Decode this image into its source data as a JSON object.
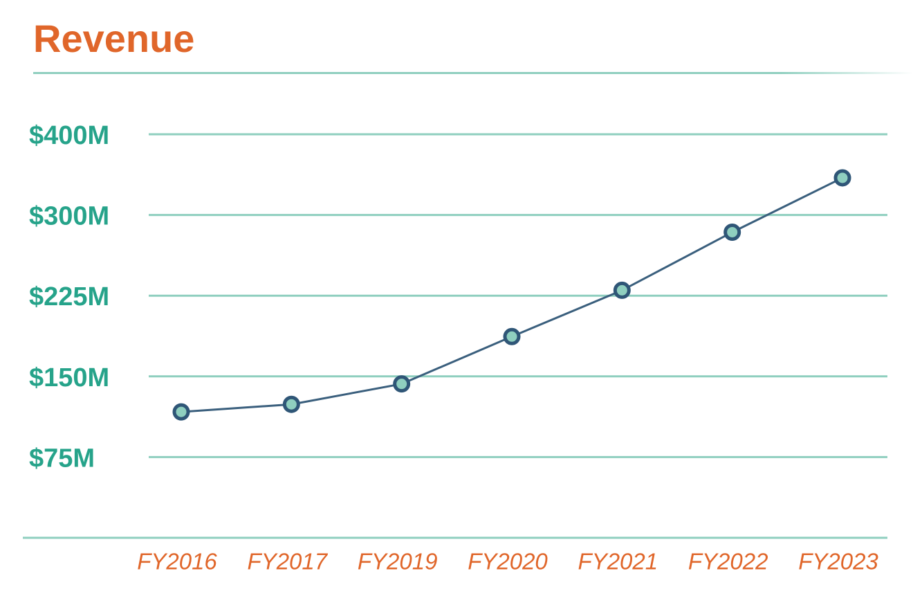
{
  "chart_data": {
    "type": "line",
    "title": "Revenue",
    "categories": [
      "FY2016",
      "FY2017",
      "FY2019",
      "FY2020",
      "FY2021",
      "FY2022",
      "FY2023"
    ],
    "values": [
      117,
      124,
      143,
      187,
      230,
      284,
      346
    ],
    "color": "#3a5f7d",
    "marker_color": "#8fcfbf",
    "ylim": [
      0,
      400
    ],
    "yticks": [
      {
        "value": 75,
        "label": "$75M"
      },
      {
        "value": 150,
        "label": "$150M"
      },
      {
        "value": 225,
        "label": "$225M"
      },
      {
        "value": 300,
        "label": "$300M"
      },
      {
        "value": 400,
        "label": "$400M"
      }
    ],
    "grid": true
  }
}
